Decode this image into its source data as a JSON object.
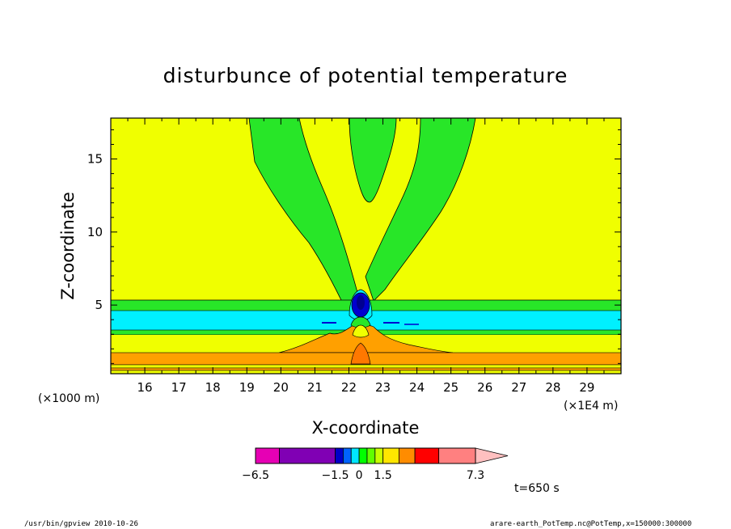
{
  "chart_data": {
    "type": "heatmap",
    "title": "disturbunce of potential temperature",
    "xlabel": "X-coordinate",
    "ylabel": "Z-coordinate",
    "x_units_left": "(×1000 m)",
    "x_units_right": "(×1E4 m)",
    "xlim": [
      15.0,
      30.0
    ],
    "ylim": [
      0.3,
      17.8
    ],
    "x_ticks": [
      16,
      17,
      18,
      19,
      20,
      21,
      22,
      23,
      24,
      25,
      26,
      27,
      28,
      29
    ],
    "y_ticks": [
      5,
      10,
      15
    ],
    "time_label": "t=650 s",
    "colorbar": {
      "tick_labels": [
        "−6.5",
        "−1.5",
        "0",
        "1.5",
        "7.3"
      ],
      "levels": [
        -6.5,
        -5.0,
        -1.5,
        -1.0,
        -0.5,
        0,
        0.5,
        1.0,
        1.5,
        2.5,
        3.5,
        5.0,
        7.3
      ],
      "colors": [
        "#e600b4",
        "#8000b4",
        "#0000c8",
        "#0064ff",
        "#00e6ff",
        "#00ff00",
        "#60ff00",
        "#c8ff00",
        "#ffe600",
        "#ff8c00",
        "#ff0000",
        "#ff8080",
        "#ffc0c0"
      ]
    }
  },
  "colors": {
    "background_field": "#f0ff00",
    "green": "#28e628",
    "cyan": "#00f0ff",
    "orange": "#ffa000",
    "dark_orange": "#ff7800",
    "blue": "#0000d0",
    "navy": "#000090"
  },
  "footer": {
    "left": "/usr/bin/gpview   2010-10-26",
    "right": "arare-earth_PotTemp.nc@PotTemp,x=150000:300000"
  }
}
